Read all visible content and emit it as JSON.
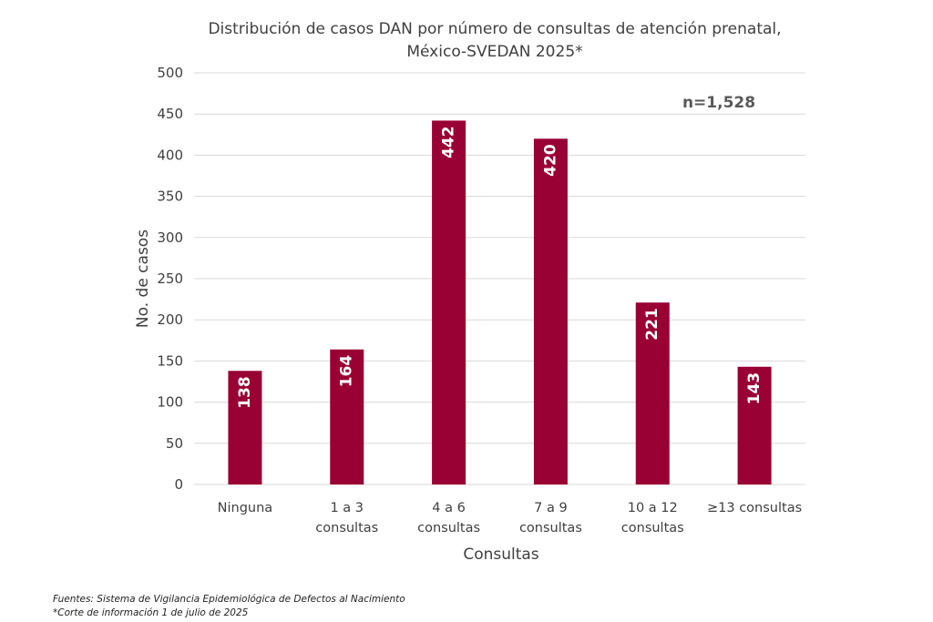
{
  "chart_data": {
    "type": "bar",
    "title_lines": [
      "Distribución de casos DAN por número de consultas de atención prenatal,",
      "México-SVEDAN 2025*"
    ],
    "annotation": "n=1,528",
    "categories": [
      [
        "Ninguna"
      ],
      [
        "1 a 3",
        "consultas"
      ],
      [
        "4 a 6",
        "consultas"
      ],
      [
        "7 a 9",
        "consultas"
      ],
      [
        "10 a 12",
        "consultas"
      ],
      [
        "≥13 consultas"
      ]
    ],
    "values": [
      138,
      164,
      442,
      420,
      221,
      143
    ],
    "value_labels": [
      "138",
      "164",
      "442",
      "420",
      "221",
      "143"
    ],
    "xlabel": "Consultas",
    "ylabel": "No. de casos",
    "ylim": [
      0,
      500
    ],
    "yticks": [
      0,
      50,
      100,
      150,
      200,
      250,
      300,
      350,
      400,
      450,
      500
    ],
    "ytick_labels": [
      "0",
      "50",
      "100",
      "150",
      "200",
      "250",
      "300",
      "350",
      "400",
      "450",
      "500"
    ],
    "grid": true,
    "bar_color": "#990033",
    "grid_color": "#d9d9d9"
  },
  "footnotes": {
    "source": "Fuentes: Sistema de Vigilancia Epidemiológica de Defectos al Nacimiento",
    "cutoff": "*Corte de información  1 de julio de 2025"
  }
}
